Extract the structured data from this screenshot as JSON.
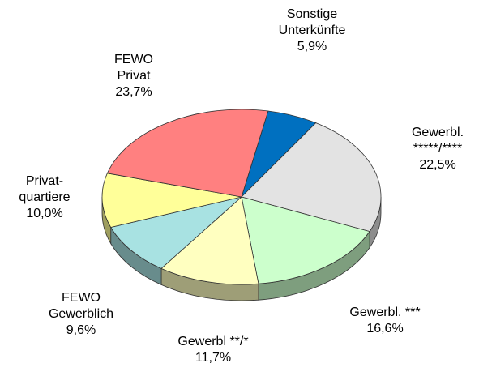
{
  "chart_data": {
    "type": "pie",
    "categories": [
      "Sonstige\nUnterkünfte",
      "Gewerbl.\n*****/****",
      "Gewerbl. ***",
      "Gewerbl **/*",
      "FEWO\nGewerblich",
      "Privat-\nquartiere",
      "FEWO\nPrivat"
    ],
    "values": [
      5.9,
      22.5,
      16.6,
      11.7,
      9.6,
      10.0,
      23.7
    ],
    "value_labels": [
      "5,9%",
      "22,5%",
      "16,6%",
      "11,7%",
      "9,6%",
      "10,0%",
      "23,7%"
    ],
    "colors": [
      "#0070c0",
      "#e3e3e3",
      "#ccffcc",
      "#ffffc0",
      "#a8e2e2",
      "#ffff99",
      "#ff8080"
    ]
  }
}
